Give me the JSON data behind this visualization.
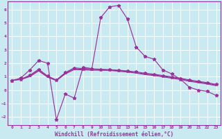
{
  "xlabel": "Windchill (Refroidissement éolien,°C)",
  "background_color": "#c8eaf0",
  "line_color": "#993399",
  "grid_color": "#aadddd",
  "xlim": [
    -0.5,
    23.5
  ],
  "ylim": [
    -2.6,
    6.6
  ],
  "xticks": [
    0,
    1,
    2,
    3,
    4,
    5,
    6,
    7,
    8,
    9,
    10,
    11,
    12,
    13,
    14,
    15,
    16,
    17,
    18,
    19,
    20,
    21,
    22,
    23
  ],
  "yticks": [
    -2,
    -1,
    0,
    1,
    2,
    3,
    4,
    5,
    6
  ],
  "line1_x": [
    0,
    1,
    2,
    3,
    4,
    5,
    6,
    7,
    8,
    9,
    10,
    11,
    12,
    13,
    14,
    15,
    16,
    17,
    18,
    19,
    20,
    21,
    22,
    23
  ],
  "line1_y": [
    0.7,
    0.9,
    1.5,
    2.2,
    2.0,
    -2.2,
    -0.3,
    -0.6,
    1.7,
    1.6,
    5.4,
    6.2,
    6.3,
    5.3,
    3.2,
    2.5,
    2.3,
    1.5,
    1.2,
    0.8,
    0.2,
    0.0,
    -0.1,
    -0.4
  ],
  "line2_x": [
    0,
    1,
    2,
    3,
    4,
    5,
    6,
    7,
    8,
    9,
    10,
    11,
    12,
    13,
    14,
    15,
    16,
    17,
    18,
    19,
    20,
    21,
    22,
    23
  ],
  "line2_y": [
    0.72,
    0.82,
    1.1,
    1.55,
    1.05,
    0.75,
    1.3,
    1.65,
    1.6,
    1.58,
    1.55,
    1.52,
    1.48,
    1.42,
    1.35,
    1.25,
    1.18,
    1.08,
    0.98,
    0.88,
    0.75,
    0.65,
    0.55,
    0.42
  ],
  "line3_x": [
    0,
    1,
    2,
    3,
    4,
    5,
    6,
    7,
    8,
    9,
    10,
    11,
    12,
    13,
    14,
    15,
    16,
    17,
    18,
    19,
    20,
    21,
    22,
    23
  ],
  "line3_y": [
    0.72,
    0.8,
    1.05,
    1.48,
    1.0,
    0.72,
    1.25,
    1.58,
    1.55,
    1.53,
    1.51,
    1.49,
    1.44,
    1.38,
    1.3,
    1.2,
    1.13,
    1.03,
    0.93,
    0.83,
    0.7,
    0.6,
    0.5,
    0.37
  ],
  "line4_x": [
    0,
    1,
    2,
    3,
    4,
    5,
    6,
    7,
    8,
    9,
    10,
    11,
    12,
    13,
    14,
    15,
    16,
    17,
    18,
    19,
    20,
    21,
    22,
    23
  ],
  "line4_y": [
    0.72,
    0.78,
    1.0,
    1.42,
    0.96,
    0.7,
    1.2,
    1.52,
    1.5,
    1.48,
    1.47,
    1.46,
    1.4,
    1.34,
    1.26,
    1.15,
    1.08,
    0.98,
    0.88,
    0.78,
    0.65,
    0.55,
    0.45,
    0.32
  ]
}
